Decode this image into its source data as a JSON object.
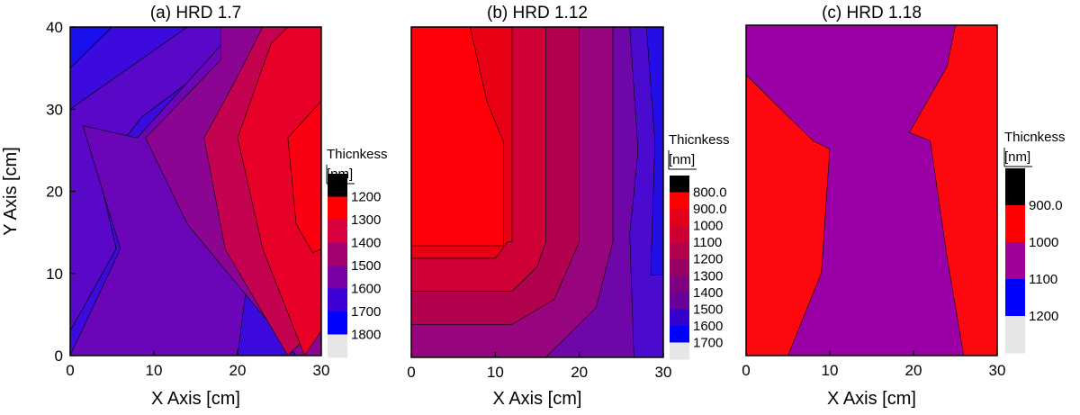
{
  "chart_data": [
    {
      "type": "contour",
      "title": "(a) HRD 1.7",
      "xlabel": "X Axis  [cm]",
      "ylabel": "Y Axis [cm]",
      "xlim": [
        0,
        30
      ],
      "ylim": [
        0,
        40
      ],
      "xticks": [
        "0",
        "10",
        "20",
        "30"
      ],
      "yticks": [
        "0",
        "10",
        "20",
        "30",
        "40"
      ],
      "colorbar": {
        "title_line1": "Thicnkess",
        "title_line2": "[nm]",
        "labels": [
          "1200",
          "1300",
          "1400",
          "1500",
          "1600",
          "1700",
          "1800"
        ],
        "colors": [
          "#000000",
          "#ff0000",
          "#d8003e",
          "#a30070",
          "#7700a3",
          "#3a00d5",
          "#0000ff",
          "#e6e6e6"
        ]
      },
      "regions": [
        {
          "level": "1700-1800",
          "color": "#1a10ee",
          "points": [
            [
              0,
              40
            ],
            [
              5,
              40
            ],
            [
              0,
              35
            ]
          ]
        },
        {
          "level": "1600-1700",
          "color": "#3c0adc",
          "points": [
            [
              5,
              40
            ],
            [
              14,
              40
            ],
            [
              0,
              30
            ],
            [
              0,
              35
            ]
          ]
        },
        {
          "level": "1500-1600",
          "color": "#5a08c8",
          "points": [
            [
              14,
              40
            ],
            [
              21,
              40
            ],
            [
              19,
              37
            ],
            [
              8.5,
              29
            ],
            [
              7,
              27
            ],
            [
              3,
              24
            ],
            [
              5.5,
              13
            ],
            [
              0,
              3
            ],
            [
              0,
              30
            ]
          ]
        },
        {
          "level": "1600-1700",
          "color": "#3c0adc",
          "points": [
            [
              0,
              0
            ],
            [
              0,
              3
            ],
            [
              5.5,
              13
            ],
            [
              3,
              24
            ],
            [
              7,
              27
            ],
            [
              8.5,
              29
            ],
            [
              19,
              37
            ],
            [
              21,
              40
            ],
            [
              24,
              40
            ],
            [
              24,
              38
            ],
            [
              26,
              37
            ],
            [
              27,
              32
            ],
            [
              30,
              32
            ],
            [
              30,
              0
            ],
            [
              19,
              0
            ],
            [
              17,
              4
            ],
            [
              10,
              0
            ]
          ]
        },
        {
          "level": "1500-1600",
          "color": "#6206c0",
          "points": [
            [
              0,
              0
            ],
            [
              16,
              0
            ],
            [
              14,
              4
            ],
            [
              3,
              2
            ]
          ]
        },
        {
          "level": "1700-1800",
          "color": "#2a0cea",
          "points": [
            [
              16,
              0
            ],
            [
              19,
              0
            ],
            [
              17,
              4
            ],
            [
              14,
              4
            ]
          ]
        },
        {
          "level": "1500-1600",
          "color": "#6a06b8",
          "points": [
            [
              8,
              26.5
            ],
            [
              1.5,
              28
            ],
            [
              6,
              13
            ],
            [
              0,
              0
            ],
            [
              20,
              0
            ],
            [
              25,
              40
            ],
            [
              20,
              40
            ]
          ]
        },
        {
          "level": "1400-1500",
          "color": "#8c0592",
          "points": [
            [
              9,
              26.5
            ],
            [
              18,
              36
            ],
            [
              18,
              40
            ],
            [
              30,
              40
            ],
            [
              30,
              0
            ],
            [
              27,
              0
            ],
            [
              14,
              16
            ]
          ]
        },
        {
          "level": "1300-1400",
          "color": "#c4024f",
          "points": [
            [
              16,
              26.5
            ],
            [
              20,
              34
            ],
            [
              23,
              40
            ],
            [
              30,
              40
            ],
            [
              30,
              4
            ],
            [
              26,
              0
            ],
            [
              18.5,
              13
            ]
          ]
        },
        {
          "level": "1200-1300",
          "color": "#e70128",
          "points": [
            [
              20,
              26.5
            ],
            [
              24,
              38
            ],
            [
              26,
              40
            ],
            [
              30,
              40
            ],
            [
              30,
              3
            ],
            [
              28,
              0
            ],
            [
              23,
              13
            ]
          ]
        },
        {
          "level": "1100-1200",
          "color": "#fa0010",
          "points": [
            [
              26,
              26.5
            ],
            [
              30,
              31
            ],
            [
              30,
              13
            ],
            [
              29,
              12.5
            ],
            [
              27,
              16
            ]
          ]
        }
      ]
    },
    {
      "type": "contour",
      "title": "(b) HRD 1.12",
      "xlabel": "X Axis  [cm]",
      "ylabel": "",
      "xlim": [
        0,
        30
      ],
      "ylim": [
        0,
        40
      ],
      "xticks": [
        "0",
        "10",
        "20",
        "30"
      ],
      "yticks": [],
      "colorbar": {
        "title_line1": "Thicnkess",
        "title_line2": "[nm]",
        "labels": [
          "800.0",
          "900.0",
          "1000",
          "1100",
          "1200",
          "1300",
          "1400",
          "1500",
          "1600",
          "1700"
        ],
        "colors": [
          "#000000",
          "#ff0000",
          "#e5001a",
          "#cc0033",
          "#b2004c",
          "#990066",
          "#7f0080",
          "#660099",
          "#3300cc",
          "#0000ff",
          "#e6e6e6"
        ]
      },
      "regions": [
        {
          "level": "1300-1400",
          "color": "#6f06a8",
          "points": [
            [
              0,
              0
            ],
            [
              30,
              0
            ],
            [
              30,
              40
            ],
            [
              0,
              40
            ]
          ]
        },
        {
          "level": "1200-1300",
          "color": "#96047e",
          "points": [
            [
              0,
              0
            ],
            [
              16,
              0
            ],
            [
              22,
              6
            ],
            [
              24,
              14
            ],
            [
              24,
              40
            ],
            [
              0,
              40
            ]
          ]
        },
        {
          "level": "1100-1200",
          "color": "#b2024e",
          "points": [
            [
              0,
              4
            ],
            [
              12,
              4
            ],
            [
              17,
              7
            ],
            [
              20,
              14
            ],
            [
              20,
              40
            ],
            [
              0,
              40
            ]
          ]
        },
        {
          "level": "1000-1100",
          "color": "#cf0035",
          "points": [
            [
              0,
              8
            ],
            [
              12,
              8
            ],
            [
              15,
              11
            ],
            [
              16,
              14
            ],
            [
              16,
              40
            ],
            [
              0,
              40
            ]
          ]
        },
        {
          "level": "900-1000",
          "color": "#e80014",
          "points": [
            [
              0,
              12
            ],
            [
              10,
              12
            ],
            [
              11.5,
              14
            ],
            [
              12,
              14
            ],
            [
              12,
              40
            ],
            [
              0,
              40
            ]
          ]
        },
        {
          "level": "800-900",
          "color": "#ff0008",
          "points": [
            [
              0,
              13.5
            ],
            [
              11,
              13.5
            ],
            [
              11,
              26
            ],
            [
              9,
              31
            ],
            [
              7,
              40
            ],
            [
              0,
              40
            ]
          ]
        },
        {
          "level": "1400-1500",
          "color": "#4a0ad0",
          "points": [
            [
              26.5,
              0
            ],
            [
              30,
              0
            ],
            [
              30,
              40
            ],
            [
              26,
              40
            ],
            [
              27,
              25
            ],
            [
              26,
              15
            ]
          ]
        },
        {
          "level": "1500-1600",
          "color": "#240ee8",
          "points": [
            [
              28.5,
              10
            ],
            [
              30,
              10
            ],
            [
              30,
              40
            ],
            [
              28,
              40
            ],
            [
              29,
              26
            ]
          ]
        }
      ]
    },
    {
      "type": "contour",
      "title": "(c) HRD 1.18",
      "xlabel": "X Axis  [cm]",
      "ylabel": "",
      "xlim": [
        0,
        30
      ],
      "ylim": [
        0,
        40
      ],
      "xticks": [
        "0",
        "10",
        "20",
        "30"
      ],
      "yticks": [],
      "colorbar": {
        "title_line1": "Thicnkess",
        "title_line2": "[nm]",
        "labels": [
          "900.0",
          "1000",
          "1100",
          "1200"
        ],
        "colors": [
          "#000000",
          "#ff0000",
          "#a00096",
          "#0000ff",
          "#e6e6e6"
        ]
      },
      "regions": [
        {
          "level": "900-1000",
          "color": "#fe0810",
          "points": [
            [
              0,
              0
            ],
            [
              30,
              0
            ],
            [
              30,
              40
            ],
            [
              0,
              40
            ]
          ]
        },
        {
          "level": "1000-1100",
          "color": "#9a00a6",
          "points": [
            [
              0,
              40
            ],
            [
              0,
              34
            ],
            [
              8,
              26
            ],
            [
              10,
              25
            ],
            [
              9,
              10
            ],
            [
              5,
              0
            ],
            [
              26,
              0
            ],
            [
              24,
              12
            ],
            [
              22,
              26
            ],
            [
              19.5,
              27
            ],
            [
              24,
              35
            ],
            [
              25,
              40
            ]
          ]
        }
      ]
    }
  ]
}
